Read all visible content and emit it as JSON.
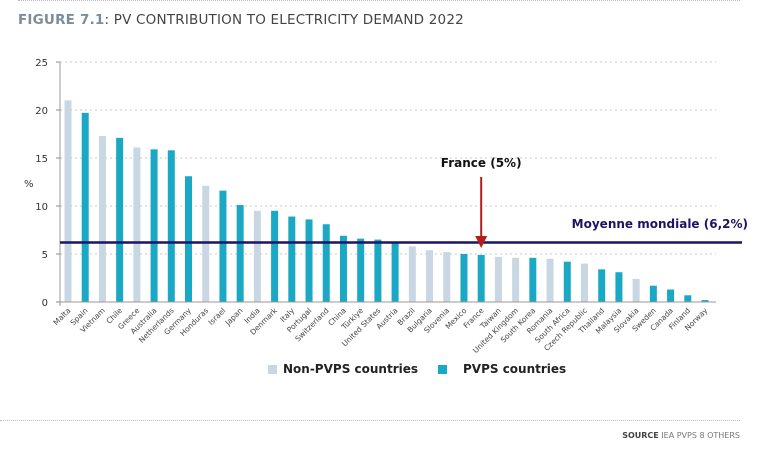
{
  "title": {
    "figure": "FIGURE 7.1",
    "text": ": PV CONTRIBUTION TO ELECTRICITY DEMAND 2022"
  },
  "source": {
    "label": "SOURCE",
    "text": "IEA PVPS 8 OTHERS"
  },
  "chart_data": {
    "type": "bar",
    "ylabel": "%",
    "ylim": [
      0,
      25
    ],
    "yticks": [
      0,
      5,
      10,
      15,
      20,
      25
    ],
    "grid": true,
    "legend_position": "bottom",
    "categories": [
      "Malta",
      "Spain",
      "Vietnam",
      "Chile",
      "Greece",
      "Australia",
      "Netherlands",
      "Germany",
      "Honduras",
      "Israel",
      "Japan",
      "India",
      "Denmark",
      "Italy",
      "Portugal",
      "Switzerland",
      "China",
      "Türkiye",
      "United States",
      "Austria",
      "Brazil",
      "Bulgaria",
      "Slovenia",
      "Mexico",
      "France",
      "Taiwan",
      "United Kingdom",
      "South Korea",
      "Romania",
      "South Africa",
      "Czech Republic",
      "Thailand",
      "Malaysia",
      "Slovakia",
      "Sweden",
      "Canada",
      "Finland",
      "Norway"
    ],
    "values": [
      21.0,
      19.7,
      17.3,
      17.1,
      16.1,
      15.9,
      15.8,
      13.1,
      12.1,
      11.6,
      10.1,
      9.5,
      9.5,
      8.9,
      8.6,
      8.1,
      6.9,
      6.6,
      6.5,
      6.1,
      5.8,
      5.4,
      5.2,
      5.0,
      4.9,
      4.7,
      4.6,
      4.6,
      4.5,
      4.2,
      4.0,
      3.4,
      3.1,
      2.4,
      1.7,
      1.3,
      0.7,
      0.2
    ],
    "group": [
      "non",
      "pvps",
      "non",
      "pvps",
      "non",
      "pvps",
      "pvps",
      "pvps",
      "non",
      "pvps",
      "pvps",
      "non",
      "pvps",
      "pvps",
      "pvps",
      "pvps",
      "pvps",
      "pvps",
      "pvps",
      "pvps",
      "non",
      "non",
      "non",
      "pvps",
      "pvps",
      "non",
      "non",
      "pvps",
      "non",
      "pvps",
      "non",
      "pvps",
      "pvps",
      "non",
      "pvps",
      "pvps",
      "pvps",
      "pvps"
    ],
    "series_legend": [
      {
        "key": "non",
        "name": "Non-PVPS countries",
        "color": "#c9d7e3"
      },
      {
        "key": "pvps",
        "name": "PVPS countries",
        "color": "#1ba8c4"
      }
    ],
    "reference_line": {
      "value": 6.2,
      "label": "Moyenne mondiale (6,2%)",
      "color": "#1e1466"
    },
    "annotation": {
      "category": "France",
      "label": "France (5%)",
      "color": "#b51c1c"
    }
  }
}
